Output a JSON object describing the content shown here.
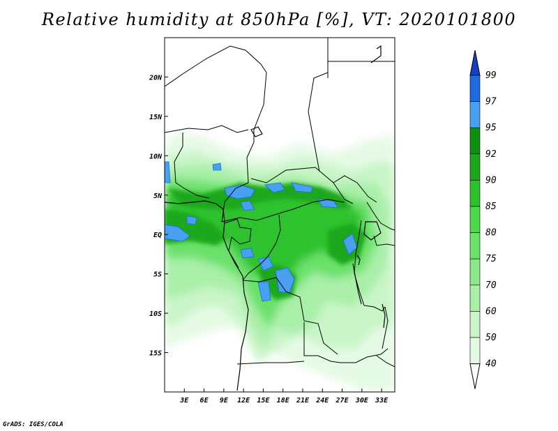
{
  "title": "Relative humidity at 850hPa [%], VT: 2020101800",
  "credit": "GrADS: IGES/COLA",
  "map": {
    "lon_range": [
      0,
      35
    ],
    "lat_range": [
      -20,
      25
    ],
    "lon_ticks": [
      "3E",
      "6E",
      "9E",
      "12E",
      "15E",
      "18E",
      "21E",
      "24E",
      "27E",
      "30E",
      "33E"
    ],
    "lon_values": [
      3,
      6,
      9,
      12,
      15,
      18,
      21,
      24,
      27,
      30,
      33
    ],
    "lat_ticks": [
      "20N",
      "15N",
      "10N",
      "5N",
      "EQ",
      "5S",
      "10S",
      "15S"
    ],
    "lat_values": [
      20,
      15,
      10,
      5,
      0,
      -5,
      -10,
      -15
    ]
  },
  "colorbar": {
    "levels": [
      "40",
      "50",
      "60",
      "70",
      "75",
      "80",
      "85",
      "90",
      "92",
      "95",
      "97",
      "99"
    ],
    "colors": [
      "#ffffff",
      "#e5fae5",
      "#c9f5c8",
      "#a9efa8",
      "#8ae889",
      "#6be16a",
      "#4bd94a",
      "#2dc22d",
      "#1aa81a",
      "#0f8f0f",
      "#4aa0f0",
      "#1e6ae0",
      "#1740c0"
    ]
  }
}
